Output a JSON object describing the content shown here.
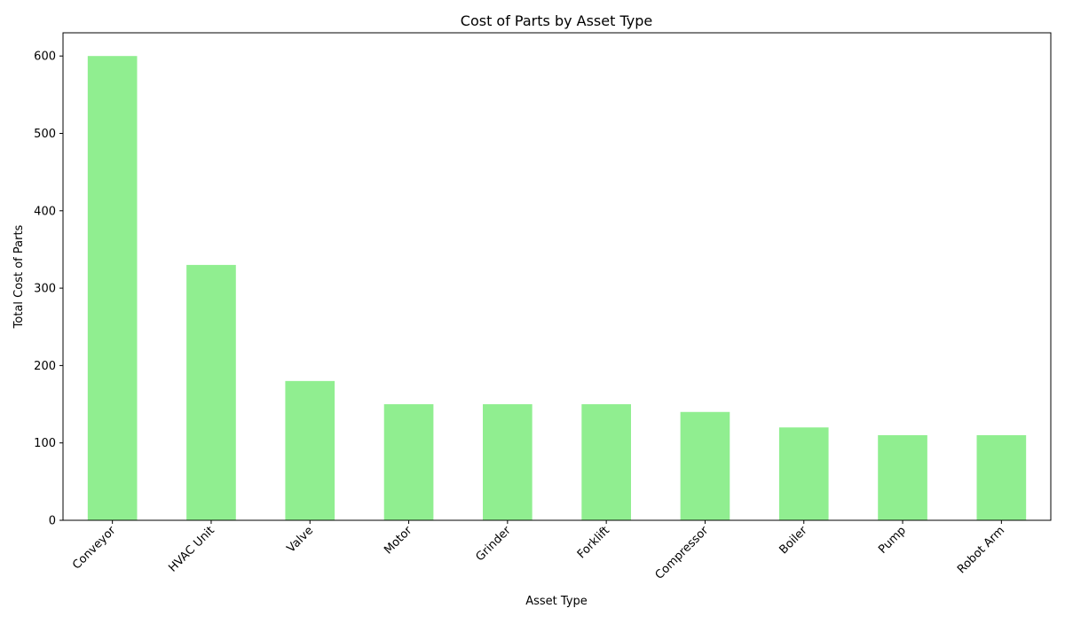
{
  "chart_data": {
    "type": "bar",
    "title": "Cost of Parts by Asset Type",
    "xlabel": "Asset Type",
    "ylabel": "Total Cost of Parts",
    "categories": [
      "Conveyor",
      "HVAC Unit",
      "Valve",
      "Motor",
      "Grinder",
      "Forklift",
      "Compressor",
      "Boiler",
      "Pump",
      "Robot Arm"
    ],
    "values": [
      600,
      330,
      180,
      150,
      150,
      150,
      140,
      120,
      110,
      110
    ],
    "ylim": [
      0,
      630
    ],
    "yticks": [
      0,
      100,
      200,
      300,
      400,
      500,
      600
    ],
    "bar_color": "#90ee90",
    "grid": false,
    "legend": "none"
  }
}
